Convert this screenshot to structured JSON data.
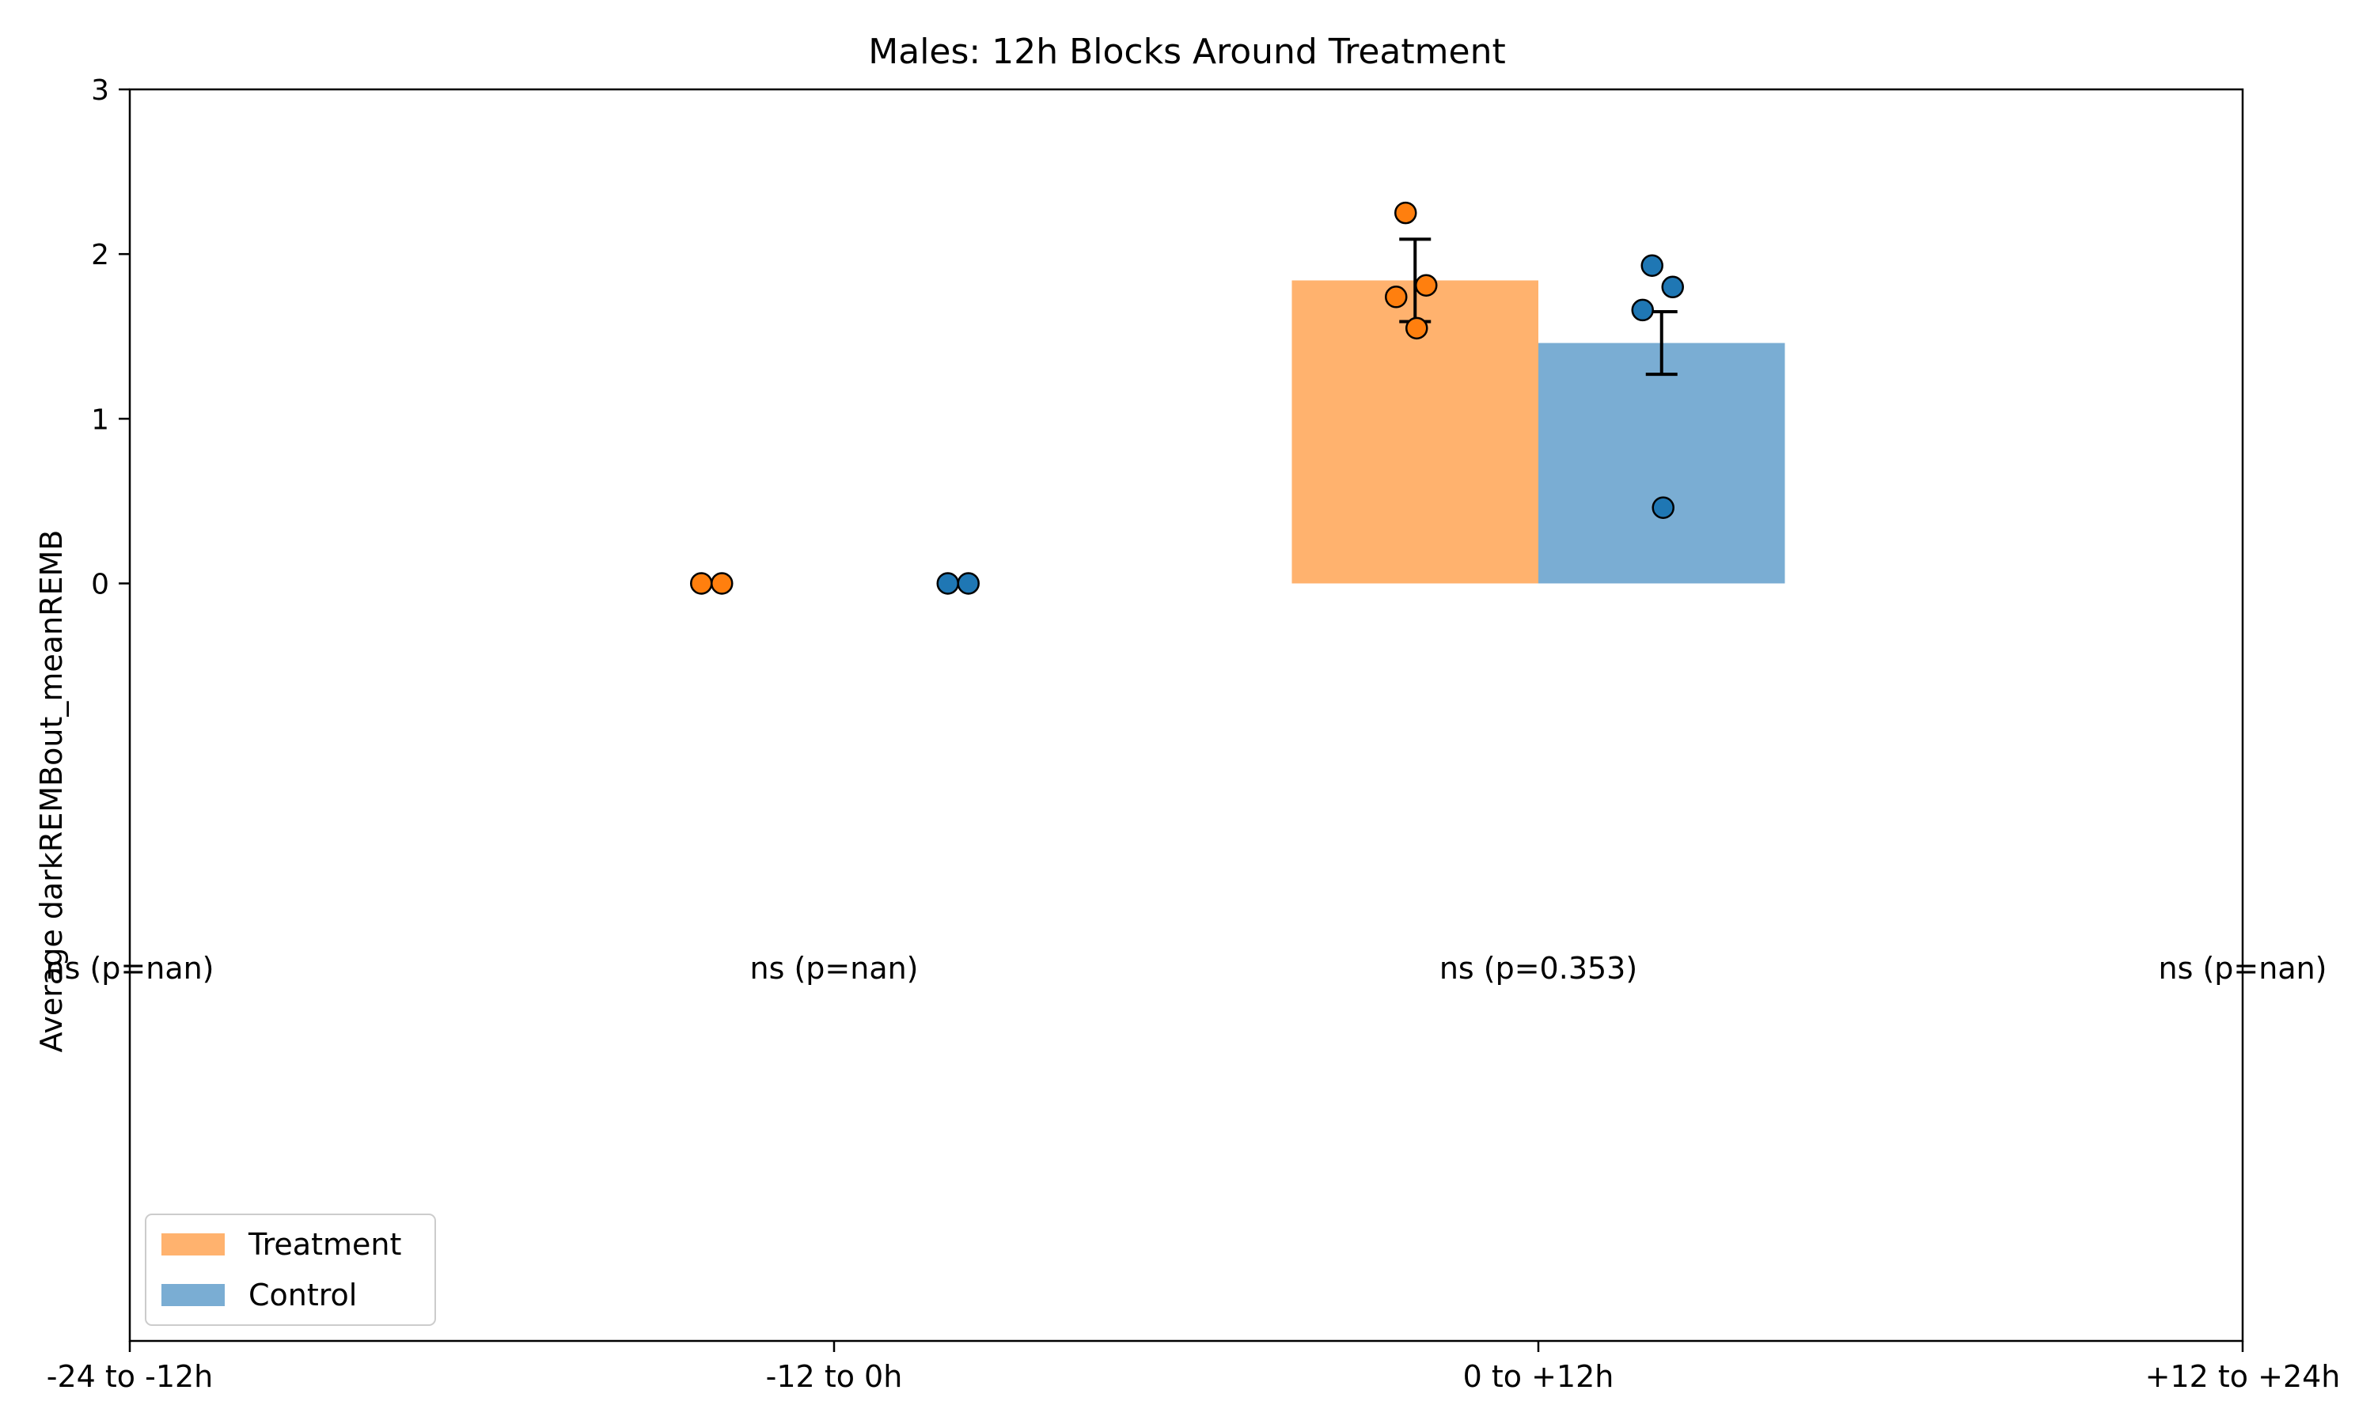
{
  "chart_data": {
    "type": "bar",
    "title": "Males: 12h Blocks Around Treatment",
    "xlabel": "",
    "ylabel": "Average darkREMBout_meanREMB",
    "categories": [
      "-24 to -12h",
      "-12 to 0h",
      "0 to +12h",
      "+12 to +24h"
    ],
    "ylim": [
      -4.6,
      3
    ],
    "yticks": [
      0,
      1,
      2,
      3
    ],
    "grid": false,
    "legend_position": "lower-left",
    "series": [
      {
        "name": "Treatment",
        "color": "#ffb26e",
        "point_color": "#ff7f0e",
        "values": [
          null,
          0,
          1.84,
          null
        ],
        "errors": [
          null,
          0,
          0.25,
          null
        ],
        "points": [
          [],
          [
            0,
            0
          ],
          [
            2.25,
            1.81,
            1.74,
            1.55
          ],
          []
        ]
      },
      {
        "name": "Control",
        "color": "#7aadd3",
        "point_color": "#1f77b4",
        "values": [
          null,
          0,
          1.46,
          null
        ],
        "errors": [
          null,
          0,
          0.19,
          null
        ],
        "points": [
          [],
          [
            0,
            0
          ],
          [
            1.93,
            1.8,
            1.66,
            0.46
          ],
          []
        ]
      }
    ],
    "annotations": [
      "ns (p=nan)",
      "ns (p=nan)",
      "ns (p=0.353)",
      "ns (p=nan)"
    ]
  }
}
